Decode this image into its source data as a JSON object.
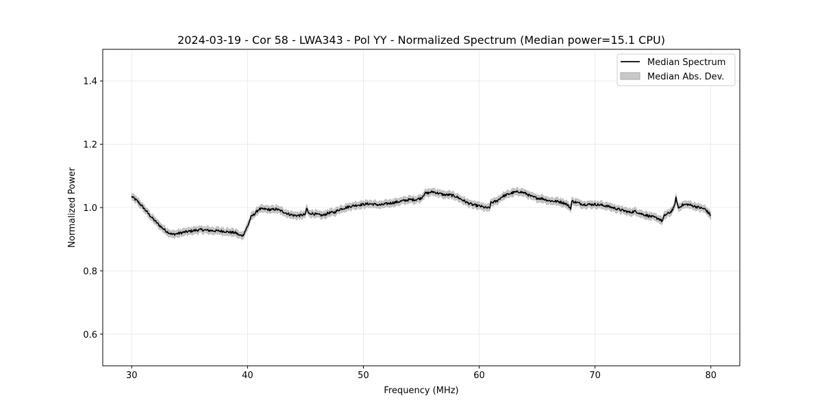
{
  "chart_data": {
    "type": "line",
    "title": "2024-03-19 - Cor 58 - LWA343 - Pol YY - Normalized Spectrum (Median power=15.1 CPU)",
    "xlabel": "Frequency (MHz)",
    "ylabel": "Normalized Power",
    "xlim": [
      27.5,
      82.5
    ],
    "ylim": [
      0.5,
      1.5
    ],
    "xticks": [
      30,
      40,
      50,
      60,
      70,
      80
    ],
    "yticks": [
      0.6,
      0.8,
      1.0,
      1.2,
      1.4
    ],
    "xtick_labels": [
      "30",
      "40",
      "50",
      "60",
      "70",
      "80"
    ],
    "ytick_labels": [
      "0.6",
      "0.8",
      "1.0",
      "1.2",
      "1.4"
    ],
    "grid": true,
    "legend_position": "top-right",
    "series": [
      {
        "name": "Median Spectrum",
        "color": "#000000",
        "x": [
          30,
          30.5,
          31,
          31.5,
          32,
          32.5,
          33,
          33.5,
          34,
          34.5,
          35,
          35.5,
          36,
          36.5,
          37,
          37.5,
          38,
          38.5,
          39,
          39.3,
          39.6,
          40,
          40.3,
          40.6,
          41,
          41.5,
          42,
          42.5,
          43,
          43.5,
          44,
          44.5,
          45,
          45.1,
          45.3,
          45.5,
          46,
          46.5,
          47,
          47.5,
          48,
          48.5,
          49,
          49.5,
          50,
          50.5,
          51,
          51.5,
          52,
          52.5,
          53,
          53.5,
          54,
          54.5,
          55,
          55.3,
          55.5,
          56,
          56.5,
          57,
          57.5,
          58,
          58.5,
          59,
          59.5,
          60,
          60.5,
          60.9,
          61,
          61.5,
          62,
          62.5,
          63,
          63.5,
          64,
          64.5,
          65,
          65.5,
          66,
          66.5,
          67,
          67.5,
          67.9,
          68,
          68.5,
          69,
          69.5,
          70,
          70.5,
          71,
          71.5,
          72,
          72.5,
          73,
          73.5,
          74,
          74.5,
          75,
          75.5,
          75.8,
          76,
          76.5,
          76.8,
          77,
          77.2,
          77.5,
          78,
          78.5,
          79,
          79.5,
          80
        ],
        "y": [
          1.035,
          1.02,
          1.0,
          0.978,
          0.958,
          0.94,
          0.925,
          0.915,
          0.918,
          0.922,
          0.925,
          0.928,
          0.93,
          0.928,
          0.927,
          0.926,
          0.925,
          0.922,
          0.92,
          0.912,
          0.912,
          0.94,
          0.97,
          0.98,
          0.995,
          0.995,
          0.993,
          0.995,
          0.988,
          0.98,
          0.975,
          0.975,
          0.978,
          0.998,
          0.98,
          0.982,
          0.978,
          0.975,
          0.983,
          0.985,
          0.995,
          1.0,
          1.005,
          1.008,
          1.01,
          1.012,
          1.01,
          1.008,
          1.012,
          1.015,
          1.018,
          1.022,
          1.025,
          1.025,
          1.03,
          1.045,
          1.045,
          1.05,
          1.045,
          1.04,
          1.04,
          1.035,
          1.025,
          1.015,
          1.008,
          1.005,
          1.0,
          0.998,
          1.015,
          1.02,
          1.035,
          1.042,
          1.048,
          1.05,
          1.045,
          1.035,
          1.03,
          1.028,
          1.022,
          1.02,
          1.018,
          1.012,
          0.998,
          1.02,
          1.015,
          1.01,
          1.01,
          1.01,
          1.008,
          1.005,
          1.0,
          0.995,
          0.99,
          0.985,
          0.988,
          0.98,
          0.975,
          0.97,
          0.965,
          0.957,
          0.975,
          0.985,
          0.998,
          1.03,
          0.998,
          1.008,
          1.01,
          1.005,
          1.0,
          0.995,
          0.975
        ]
      },
      {
        "name": "Median Abs. Dev.",
        "type": "band",
        "color": "#c8c8c8",
        "half_width": 0.01
      }
    ]
  }
}
